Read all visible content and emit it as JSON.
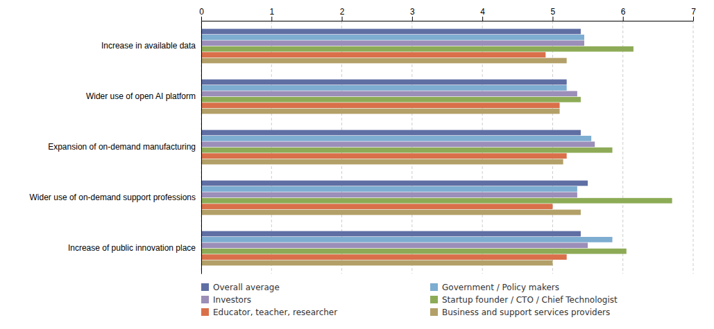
{
  "chart_data": {
    "type": "bar",
    "orientation": "horizontal",
    "categories": [
      "Increase in available data",
      "Wider use of open AI platform",
      "Expansion of on-demand manufacturing",
      "Wider use of on-demand support professions",
      "Increase of public innovation place"
    ],
    "series": [
      {
        "name": "Overall average",
        "color": "#5f6fa4",
        "values": [
          5.4,
          5.2,
          5.4,
          5.5,
          5.4
        ]
      },
      {
        "name": "Government / Policy makers",
        "color": "#7dadd0",
        "values": [
          5.45,
          5.2,
          5.55,
          5.35,
          5.85
        ]
      },
      {
        "name": "Investors",
        "color": "#9b8eb8",
        "values": [
          5.45,
          5.35,
          5.6,
          5.35,
          5.5
        ]
      },
      {
        "name": "Startup founder / CTO / Chief Technologist",
        "color": "#8dab56",
        "values": [
          6.15,
          5.4,
          5.85,
          6.7,
          6.05
        ]
      },
      {
        "name": "Educator, teacher, researcher",
        "color": "#d9704a",
        "values": [
          4.9,
          5.1,
          5.2,
          5.0,
          5.2
        ]
      },
      {
        "name": "Business and support services providers",
        "color": "#b3a068",
        "values": [
          5.2,
          5.1,
          5.15,
          5.4,
          5.0
        ]
      }
    ],
    "xlim": [
      0,
      7
    ],
    "xticks": [
      0,
      1,
      2,
      3,
      4,
      5,
      6,
      7
    ],
    "grid": true,
    "legend": "bottom"
  }
}
